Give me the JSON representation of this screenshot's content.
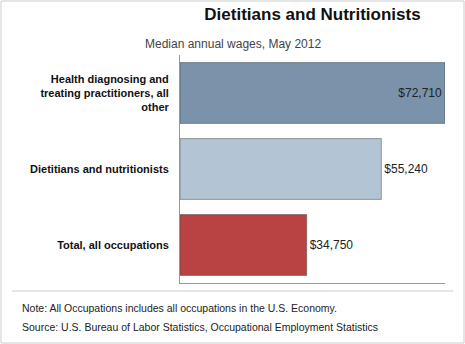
{
  "chart_data": {
    "type": "bar",
    "orientation": "horizontal",
    "title": "Dietitians and Nutritionists",
    "subtitle": "Median annual wages, May 2012",
    "categories": [
      "Health diagnosing and treating practitioners, all other",
      "Dietitians and nutritionists",
      "Total, all occupations"
    ],
    "values": [
      72710,
      55240,
      34750
    ],
    "value_labels": [
      "$72,710",
      "$55,240",
      "$34,750"
    ],
    "colors": [
      "#7a93ab",
      "#b3c5d4",
      "#b94343"
    ],
    "xlim": [
      0,
      72710
    ],
    "data_labels": true,
    "tick_labels": "y",
    "grid": false,
    "annotations": [
      "Note: All Occupations includes all occupations in the U.S. Economy.",
      "Source: U.S. Bureau of Labor Statistics, Occupational Employment Statistics"
    ]
  }
}
